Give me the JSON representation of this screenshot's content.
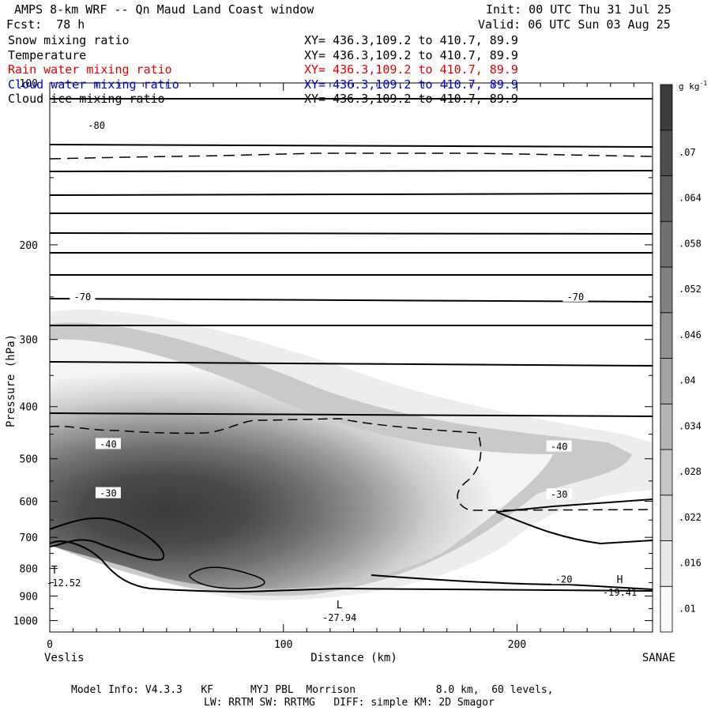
{
  "header": {
    "title": "AMPS 8-km WRF -- Qn Maud Land Coast window",
    "forecast": "Fcst:  78 h",
    "init": "Init: 00 UTC Thu 31 Jul 25",
    "valid": "Valid: 06 UTC Sun 03 Aug 25"
  },
  "fields": [
    {
      "name": "Snow mixing ratio",
      "xy": "XY= 436.3,109.2 to 410.7, 89.9",
      "color": "#000000"
    },
    {
      "name": "Temperature",
      "xy": "XY= 436.3,109.2 to 410.7, 89.9",
      "color": "#000000"
    },
    {
      "name": "Rain water mixing ratio",
      "xy": "XY= 436.3,109.2 to 410.7, 89.9",
      "color": "#e00000"
    },
    {
      "name": "Cloud water mixing ratio",
      "xy": "XY= 436.3,109.2 to 410.7, 89.9",
      "color": "#0000cc"
    },
    {
      "name": "Cloud ice mixing ratio",
      "xy": "XY= 436.3,109.2 to 410.7, 89.9",
      "color": "#000000"
    }
  ],
  "footer": {
    "line1": "Model Info: V4.3.3   KF      MYJ PBL  Morrison             8.0 km,  60 levels,",
    "line2": "LW: RRTM SW: RRTMG   DIFF: simple KM: 2D Smagor"
  },
  "chart_data": {
    "type": "heatmap",
    "xlabel": "Distance (km)",
    "ylabel": "Pressure (hPa)",
    "xlim": [
      0,
      258
    ],
    "ylim": [
      1050,
      100
    ],
    "y_scale": "log",
    "x_ticks": [
      0,
      100,
      200
    ],
    "y_ticks": [
      100,
      200,
      300,
      400,
      500,
      600,
      700,
      800,
      900,
      1000
    ],
    "x_endpoints": {
      "left": "Veslis",
      "right": "SANAE"
    },
    "colorbar": {
      "unit": "g kg",
      "unit_exp": "-1",
      "ticks": [
        ".01",
        ".016",
        ".022",
        ".028",
        ".034",
        ".04",
        ".046",
        ".052",
        ".058",
        ".064",
        ".07"
      ]
    },
    "temperature_labels": [
      {
        "text": "-80",
        "x": 20,
        "p": 120
      },
      {
        "text": "-70",
        "x": 14,
        "p": 250
      },
      {
        "text": "-70",
        "x": 225,
        "p": 250
      },
      {
        "text": "-40",
        "x": 25,
        "p": 470
      },
      {
        "text": "-40",
        "x": 218,
        "p": 475
      },
      {
        "text": "-30",
        "x": 25,
        "p": 580
      },
      {
        "text": "-30",
        "x": 218,
        "p": 583
      },
      {
        "text": "-20",
        "x": 220,
        "p": 838
      }
    ],
    "extrema": [
      {
        "symbol": "H",
        "value": "-19.41",
        "x": 244,
        "p": 875
      },
      {
        "symbol": "L",
        "value": "-27.94",
        "x": 124,
        "p": 975
      },
      {
        "symbol": "T",
        "value": "-12.52",
        "x": 0,
        "p": 840
      }
    ]
  }
}
